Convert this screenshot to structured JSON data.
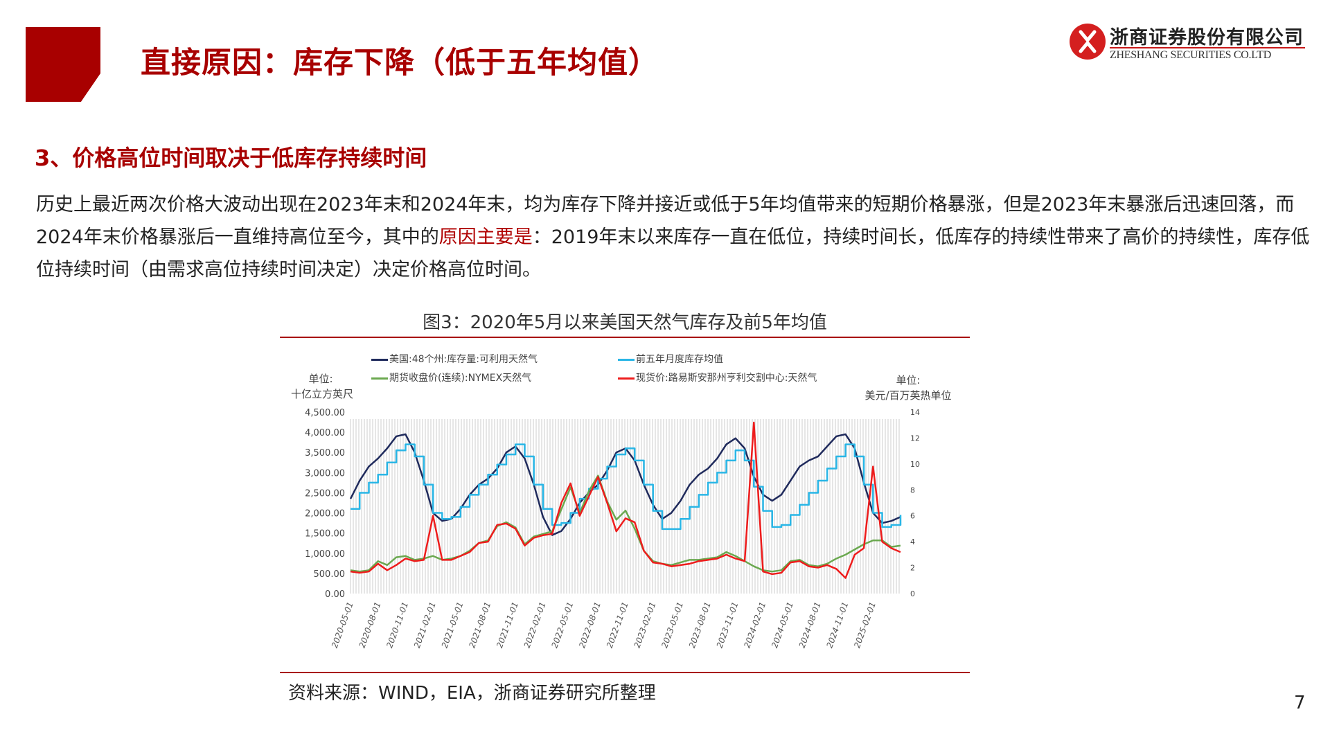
{
  "header": {
    "title": "直接原因：库存下降（低于五年均值）",
    "logo_cn": "浙商证券股份有限公司",
    "logo_en": "ZHESHANG SECURITIES CO.LTD"
  },
  "section": {
    "title": "3、价格高位时间取决于低库存持续时间",
    "paragraph_part1": "历史上最近两次价格大波动出现在2023年末和2024年末，均为库存下降并接近或低于5年均值带来的短期价格暴涨，但是2023年末暴涨后迅速回落，而2024年末价格暴涨后一直维持高位至今，其中的",
    "paragraph_highlight": "原因主要是",
    "paragraph_part2": "：2019年末以来库存一直在低位，持续时间长，低库存的持续性带来了高价的持续性，库存低位持续时间（由需求高位持续时间决定）决定价格高位时间。"
  },
  "figure": {
    "title": "图3：2020年5月以来美国天然气库存及前5年均值",
    "source": "资料来源：WIND，EIA，浙商证券研究所整理",
    "left_unit_line1": "单位:",
    "left_unit_line2": "十亿立方英尺",
    "right_unit_line1": "单位:",
    "right_unit_line2": "美元/百万英热单位"
  },
  "page_number": "7",
  "colors": {
    "brand_red": "#a80000",
    "inventory": "#1f2a5c",
    "five_year_avg": "#29b6e6",
    "futures": "#6aa84f",
    "spot": "#ee1c1c"
  },
  "chart_data": {
    "type": "line",
    "title": "图3：2020年5月以来美国天然气库存及前5年均值",
    "xlabel": "",
    "ylabel": "十亿立方英尺",
    "y2label": "美元/百万英热单位",
    "ylim": [
      0,
      4500
    ],
    "y2lim": [
      0,
      14
    ],
    "yticks": [
      "4,500.00",
      "4,000.00",
      "3,500.00",
      "3,000.00",
      "2,500.00",
      "2,000.00",
      "1,500.00",
      "1,000.00",
      "500.00",
      "0.00"
    ],
    "y2ticks": [
      "14",
      "12",
      "10",
      "8",
      "6",
      "4",
      "2",
      "0"
    ],
    "xticks": [
      "2020-05-01",
      "2020-08-01",
      "2020-11-01",
      "2021-02-01",
      "2021-05-01",
      "2021-08-01",
      "2021-11-01",
      "2022-02-01",
      "2022-05-01",
      "2022-08-01",
      "2022-11-01",
      "2023-02-01",
      "2023-05-01",
      "2023-08-01",
      "2023-11-01",
      "2024-02-01",
      "2024-05-01",
      "2024-08-01",
      "2024-11-01",
      "2025-02-01"
    ],
    "legend": [
      {
        "name": "美国:48个州:库存量:可利用天然气",
        "axis": "left"
      },
      {
        "name": "前五年月度库存均值",
        "axis": "left"
      },
      {
        "name": "期货收盘价(连续):NYMEX天然气",
        "axis": "right"
      },
      {
        "name": "现货价:路易斯安那州亨利交割中心:天然气",
        "axis": "right"
      }
    ],
    "x": [
      "2020-05",
      "2020-06",
      "2020-07",
      "2020-08",
      "2020-09",
      "2020-10",
      "2020-11",
      "2020-12",
      "2021-01",
      "2021-02",
      "2021-03",
      "2021-04",
      "2021-05",
      "2021-06",
      "2021-07",
      "2021-08",
      "2021-09",
      "2021-10",
      "2021-11",
      "2021-12",
      "2022-01",
      "2022-02",
      "2022-03",
      "2022-04",
      "2022-05",
      "2022-06",
      "2022-07",
      "2022-08",
      "2022-09",
      "2022-10",
      "2022-11",
      "2022-12",
      "2023-01",
      "2023-02",
      "2023-03",
      "2023-04",
      "2023-05",
      "2023-06",
      "2023-07",
      "2023-08",
      "2023-09",
      "2023-10",
      "2023-11",
      "2023-12",
      "2024-01",
      "2024-02",
      "2024-03",
      "2024-04",
      "2024-05",
      "2024-06",
      "2024-07",
      "2024-08",
      "2024-09",
      "2024-10",
      "2024-11",
      "2024-12",
      "2025-01",
      "2025-02",
      "2025-03",
      "2025-04",
      "2025-05"
    ],
    "series": [
      {
        "name": "美国:48个州:库存量:可利用天然气",
        "axis": "left",
        "values": [
          2350,
          2800,
          3150,
          3350,
          3600,
          3900,
          3950,
          3500,
          2800,
          2000,
          1800,
          1850,
          2100,
          2450,
          2700,
          2850,
          3100,
          3500,
          3650,
          3350,
          2700,
          1900,
          1450,
          1550,
          1850,
          2250,
          2500,
          2700,
          3050,
          3500,
          3600,
          3300,
          2700,
          2200,
          1850,
          2000,
          2300,
          2700,
          2950,
          3100,
          3350,
          3700,
          3850,
          3600,
          2900,
          2450,
          2300,
          2450,
          2800,
          3150,
          3300,
          3400,
          3650,
          3900,
          3950,
          3600,
          2750,
          2000,
          1750,
          1800,
          1900
        ]
      },
      {
        "name": "前五年月度库存均值",
        "axis": "left",
        "values": [
          2100,
          2500,
          2750,
          2950,
          3250,
          3550,
          3700,
          3400,
          2700,
          2000,
          1850,
          1900,
          2150,
          2450,
          2700,
          2950,
          3200,
          3450,
          3700,
          3400,
          2700,
          2100,
          1700,
          1750,
          2000,
          2350,
          2600,
          2850,
          3150,
          3450,
          3600,
          3300,
          2700,
          2050,
          1600,
          1600,
          1850,
          2150,
          2450,
          2750,
          3000,
          3300,
          3550,
          3300,
          2650,
          2050,
          1650,
          1700,
          1950,
          2200,
          2500,
          2800,
          3100,
          3400,
          3700,
          3400,
          2700,
          2000,
          1650,
          1700,
          1950
        ]
      },
      {
        "name": "期货收盘价(连续):NYMEX天然气",
        "axis": "right",
        "values": [
          1.8,
          1.7,
          1.8,
          2.5,
          2.2,
          2.8,
          2.9,
          2.6,
          2.7,
          2.9,
          2.6,
          2.7,
          2.9,
          3.3,
          3.9,
          4.1,
          5.2,
          5.5,
          5.1,
          3.8,
          4.4,
          4.6,
          4.8,
          6.5,
          8.2,
          6.2,
          7.9,
          9.1,
          7.1,
          5.7,
          6.4,
          5.0,
          3.3,
          2.5,
          2.3,
          2.2,
          2.4,
          2.6,
          2.6,
          2.7,
          2.8,
          3.2,
          2.9,
          2.5,
          2.1,
          1.8,
          1.7,
          1.8,
          2.5,
          2.6,
          2.2,
          2.1,
          2.3,
          2.7,
          3.0,
          3.4,
          3.8,
          4.1,
          4.1,
          3.6,
          3.7
        ]
      },
      {
        "name": "现货价:路易斯安那州亨利交割中心:天然气",
        "axis": "right",
        "values": [
          1.7,
          1.6,
          1.7,
          2.3,
          1.8,
          2.2,
          2.7,
          2.5,
          2.6,
          6.0,
          2.6,
          2.6,
          2.9,
          3.2,
          3.9,
          4.0,
          5.3,
          5.4,
          5.0,
          3.7,
          4.3,
          4.5,
          4.6,
          7.0,
          8.5,
          6.0,
          7.5,
          9.0,
          7.0,
          4.8,
          5.8,
          5.5,
          3.3,
          2.4,
          2.3,
          2.1,
          2.2,
          2.3,
          2.5,
          2.6,
          2.7,
          3.0,
          2.7,
          2.5,
          13.2,
          1.7,
          1.5,
          1.6,
          2.4,
          2.5,
          2.1,
          2.0,
          2.2,
          1.9,
          1.2,
          3.0,
          3.5,
          9.8,
          4.0,
          3.5,
          3.2
        ]
      }
    ]
  }
}
